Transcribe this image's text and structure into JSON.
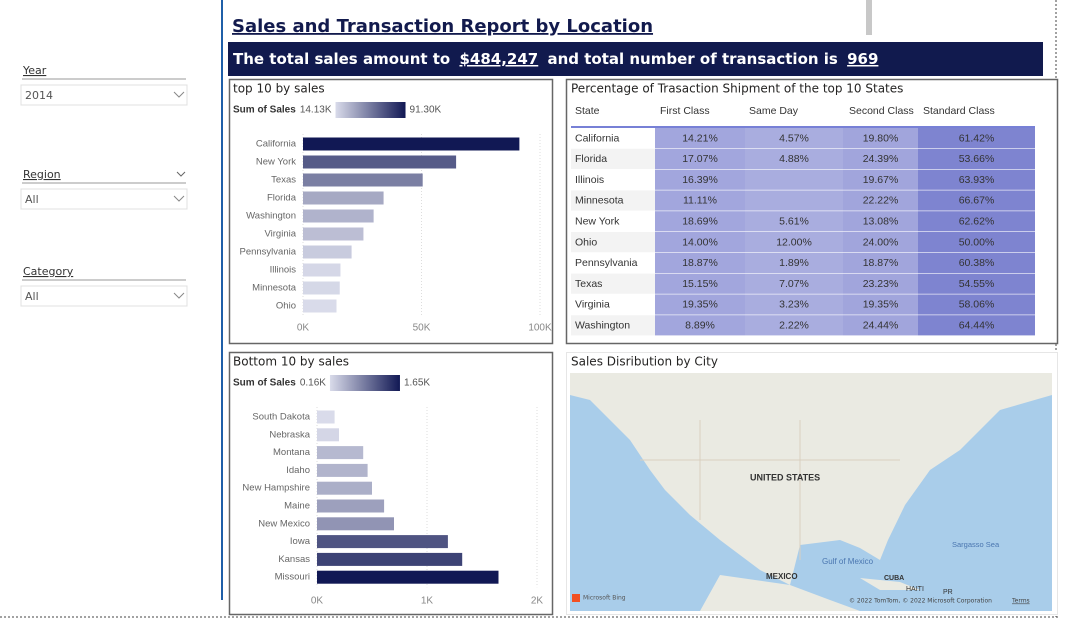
{
  "filters": [
    {
      "label": "Year",
      "value": "2014"
    },
    {
      "label": "Region",
      "value": "All"
    },
    {
      "label": "Category",
      "value": "All"
    }
  ],
  "header": {
    "title": "Sales and Transaction Report by Location",
    "summary_text_1": "The total sales amount to",
    "total_sales": "$484,247",
    "summary_text_2": "and total number of transaction is",
    "transactions": "969"
  },
  "chart_data": [
    {
      "type": "bar",
      "orientation": "horizontal",
      "title": "top 10 by sales",
      "legend_title": "Sum of Sales",
      "color_scale": {
        "min": {
          "value": 14130,
          "label": "14.13K"
        },
        "max": {
          "value": 91300,
          "label": "91.30K"
        },
        "low_color": "#d9dbea",
        "high_color": "#111854"
      },
      "categories": [
        "California",
        "New York",
        "Texas",
        "Florida",
        "Washington",
        "Virginia",
        "Pennsylvania",
        "Illinois",
        "Minnesota",
        "Ohio"
      ],
      "values": [
        91300,
        64600,
        50500,
        34000,
        29800,
        25500,
        20500,
        15800,
        15500,
        14130
      ],
      "xlim": [
        0,
        100000
      ],
      "xticks": [
        {
          "value": 0,
          "label": "0K"
        },
        {
          "value": 50000,
          "label": "50K"
        },
        {
          "value": 100000,
          "label": "100K"
        }
      ],
      "grid": true
    },
    {
      "type": "bar",
      "orientation": "horizontal",
      "title": "Bottom 10 by sales",
      "legend_title": "Sum of Sales",
      "color_scale": {
        "min": {
          "value": 160,
          "label": "0.16K"
        },
        "max": {
          "value": 1650,
          "label": "1.65K"
        },
        "low_color": "#d9dbea",
        "high_color": "#111854"
      },
      "categories": [
        "South Dakota",
        "Nebraska",
        "Montana",
        "Idaho",
        "New Hampshire",
        "Maine",
        "New Mexico",
        "Iowa",
        "Kansas",
        "Missouri"
      ],
      "values": [
        160,
        200,
        420,
        460,
        500,
        610,
        700,
        1190,
        1320,
        1650
      ],
      "xlim": [
        0,
        2000
      ],
      "xticks": [
        {
          "value": 0,
          "label": "0K"
        },
        {
          "value": 1000,
          "label": "1K"
        },
        {
          "value": 2000,
          "label": "2K"
        }
      ],
      "grid": true
    }
  ],
  "table": {
    "title": "Percentage of Trasaction Shipment of the top 10 States",
    "columns": [
      "State",
      "First Class",
      "Same Day",
      "Second Class",
      "Standard Class"
    ],
    "column_colors": [
      null,
      "#a2a6dd",
      "#a9addf",
      "#a1a5dc",
      "#7e84d0"
    ],
    "rows": [
      [
        "California",
        "14.21%",
        "4.57%",
        "19.80%",
        "61.42%"
      ],
      [
        "Florida",
        "17.07%",
        "4.88%",
        "24.39%",
        "53.66%"
      ],
      [
        "Illinois",
        "16.39%",
        null,
        "19.67%",
        "63.93%"
      ],
      [
        "Minnesota",
        "11.11%",
        null,
        "22.22%",
        "66.67%"
      ],
      [
        "New York",
        "18.69%",
        "5.61%",
        "13.08%",
        "62.62%"
      ],
      [
        "Ohio",
        "14.00%",
        "12.00%",
        "24.00%",
        "50.00%"
      ],
      [
        "Pennsylvania",
        "18.87%",
        "1.89%",
        "18.87%",
        "60.38%"
      ],
      [
        "Texas",
        "15.15%",
        "7.07%",
        "23.23%",
        "54.55%"
      ],
      [
        "Virginia",
        "19.35%",
        "3.23%",
        "19.35%",
        "58.06%"
      ],
      [
        "Washington",
        "8.89%",
        "2.22%",
        "24.44%",
        "64.44%"
      ]
    ]
  },
  "map": {
    "title": "Sales Disribution by City",
    "labels": [
      "UNITED STATES",
      "Gulf of Mexico",
      "MEXICO",
      "CUBA",
      "HAITI",
      "PR",
      "Sargasso Sea"
    ],
    "attribution": "Microsoft Bing",
    "copyright": "© 2022 TomTom, © 2022 Microsoft Corporation",
    "terms": "Terms"
  }
}
